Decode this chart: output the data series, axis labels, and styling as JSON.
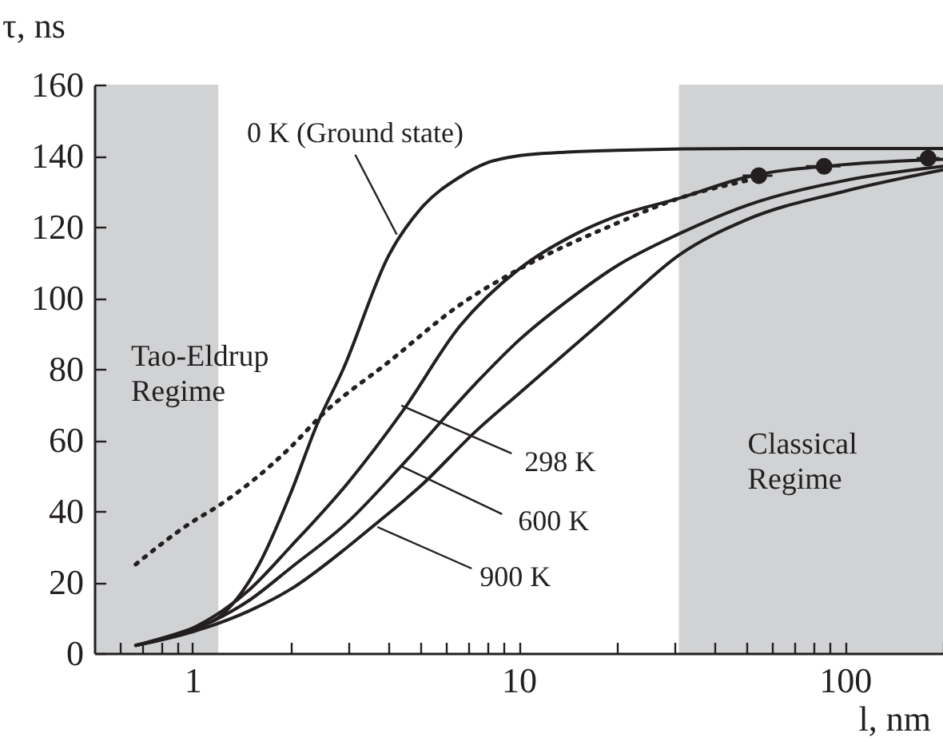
{
  "chart_data": {
    "type": "line",
    "xlabel": "l, nm",
    "ylabel": "τ, ns",
    "log": "x",
    "xlim": [
      0.5,
      200
    ],
    "ylim": [
      0,
      160
    ],
    "xticks": [
      {
        "value": 0.6,
        "label": null
      },
      {
        "value": 0.7,
        "label": null
      },
      {
        "value": 0.8,
        "label": null
      },
      {
        "value": 0.9,
        "label": null
      },
      1,
      {
        "value": 2,
        "label": null
      },
      {
        "value": 3,
        "label": null
      },
      {
        "value": 4,
        "label": null
      },
      {
        "value": 5,
        "label": null
      },
      {
        "value": 6,
        "label": null
      },
      {
        "value": 7,
        "label": null
      },
      {
        "value": 8,
        "label": null
      },
      {
        "value": 9,
        "label": null
      },
      10,
      {
        "value": 20,
        "label": null
      },
      {
        "value": 30,
        "label": null
      },
      {
        "value": 40,
        "label": null
      },
      {
        "value": 50,
        "label": null
      },
      {
        "value": 60,
        "label": null
      },
      {
        "value": 70,
        "label": null
      },
      {
        "value": 80,
        "label": null
      },
      {
        "value": 90,
        "label": null
      },
      100,
      {
        "value": 200,
        "label": null
      }
    ],
    "yticks": [
      0,
      20,
      40,
      60,
      80,
      100,
      120,
      140,
      160
    ],
    "bands": [
      {
        "axis": "x",
        "from": 0.5,
        "to": 1.2,
        "label": "Tao-Eldrup Regime",
        "color": "#d1d2d4"
      },
      {
        "axis": "x",
        "from": 31,
        "to": 200,
        "label": "Classical Regime",
        "color": "#d1d2d4"
      }
    ],
    "series": [
      {
        "color": "#231f20",
        "line_style": "solid",
        "x": [
          0.67,
          1,
          1.2,
          1.6,
          2,
          2.4,
          2.9,
          4,
          5,
          6.6,
          8,
          10,
          14,
          20,
          50,
          200
        ],
        "values": [
          2.2,
          7,
          10,
          25,
          45,
          64,
          80,
          112,
          125,
          134,
          138,
          140,
          141,
          141.5,
          142,
          142
        ]
      },
      {
        "color": "#231f20",
        "line_style": "solid",
        "x": [
          0.67,
          1,
          1.5,
          2,
          3,
          4.4,
          6.6,
          10,
          15,
          20,
          31,
          50,
          100,
          200
        ],
        "values": [
          2.2,
          7,
          18,
          30,
          48,
          68,
          92,
          108,
          118,
          123,
          128,
          134,
          137.5,
          139
        ]
      },
      {
        "color": "#231f20",
        "line_style": "solid",
        "x": [
          0.67,
          1,
          1.5,
          2,
          3,
          4.4,
          7.4,
          10,
          15,
          20,
          31,
          50,
          100,
          200
        ],
        "values": [
          2.2,
          6.5,
          15,
          24,
          37,
          53,
          76,
          88,
          101,
          109,
          118,
          126,
          133,
          137
        ]
      },
      {
        "color": "#231f20",
        "line_style": "solid",
        "x": [
          0.67,
          1,
          1.5,
          2,
          3,
          3.65,
          5,
          7.4,
          10,
          15,
          20,
          31,
          50,
          100,
          200
        ],
        "values": [
          2.2,
          6,
          12,
          18,
          30,
          36.4,
          47,
          62.5,
          73,
          87,
          97,
          112,
          122,
          130,
          136
        ]
      },
      {
        "color": "#231f20",
        "line_style": "dotted",
        "x": [
          0.67,
          1,
          1.18,
          2,
          2.49,
          4,
          6.6,
          10,
          20,
          31,
          50
        ],
        "values": [
          25,
          37,
          41,
          58,
          67,
          82,
          98,
          108,
          121,
          128,
          133
        ]
      },
      {
        "type": "scatter",
        "color": "#231f20",
        "marker": "circle",
        "x": [
          54.5,
          86.4,
          180
        ],
        "values": [
          134.4,
          137,
          139.3
        ],
        "xerrors": [
          [
            48.6,
            60
          ],
          [
            76,
            97
          ],
          [
            166,
            195
          ]
        ]
      }
    ],
    "annotations": [
      {
        "text": "0 K (Ground state)",
        "x": 4.23,
        "y": 117.8
      },
      {
        "text": "298 K",
        "x": 4.37,
        "y": 69.7
      },
      {
        "text": "600 K",
        "x": 4.37,
        "y": 52.6
      },
      {
        "text": "900 K",
        "x": 3.69,
        "y": 35.5
      }
    ]
  }
}
